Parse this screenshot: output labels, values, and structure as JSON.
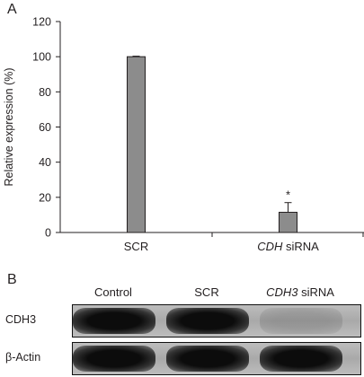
{
  "panels": {
    "a_label": "A",
    "b_label": "B"
  },
  "chart_data": {
    "type": "bar",
    "categories": [
      "SCR",
      "CDH siRNA"
    ],
    "category_display": [
      {
        "italic": "",
        "rest": "SCR"
      },
      {
        "italic": "CDH",
        "rest": " siRNA"
      }
    ],
    "values": [
      100,
      11.5
    ],
    "error": [
      0.3,
      5.5
    ],
    "significance": [
      "",
      "*"
    ],
    "ylabel": "Relative expression (%)",
    "xlabel": "",
    "ylim": [
      0,
      120
    ],
    "yticks": [
      0,
      20,
      40,
      60,
      80,
      100,
      120
    ],
    "bar_color": "#8c8c8c",
    "grid": false
  },
  "blot": {
    "lanes": [
      {
        "italic": "",
        "rest": "Control"
      },
      {
        "italic": "",
        "rest": "SCR"
      },
      {
        "italic": "CDH3",
        "rest": " siRNA"
      }
    ],
    "rows": [
      {
        "label": "CDH3",
        "band_intensity": [
          1.0,
          1.0,
          0.15
        ]
      },
      {
        "label": "β-Actin",
        "band_intensity": [
          1.0,
          1.0,
          1.0
        ]
      }
    ]
  }
}
